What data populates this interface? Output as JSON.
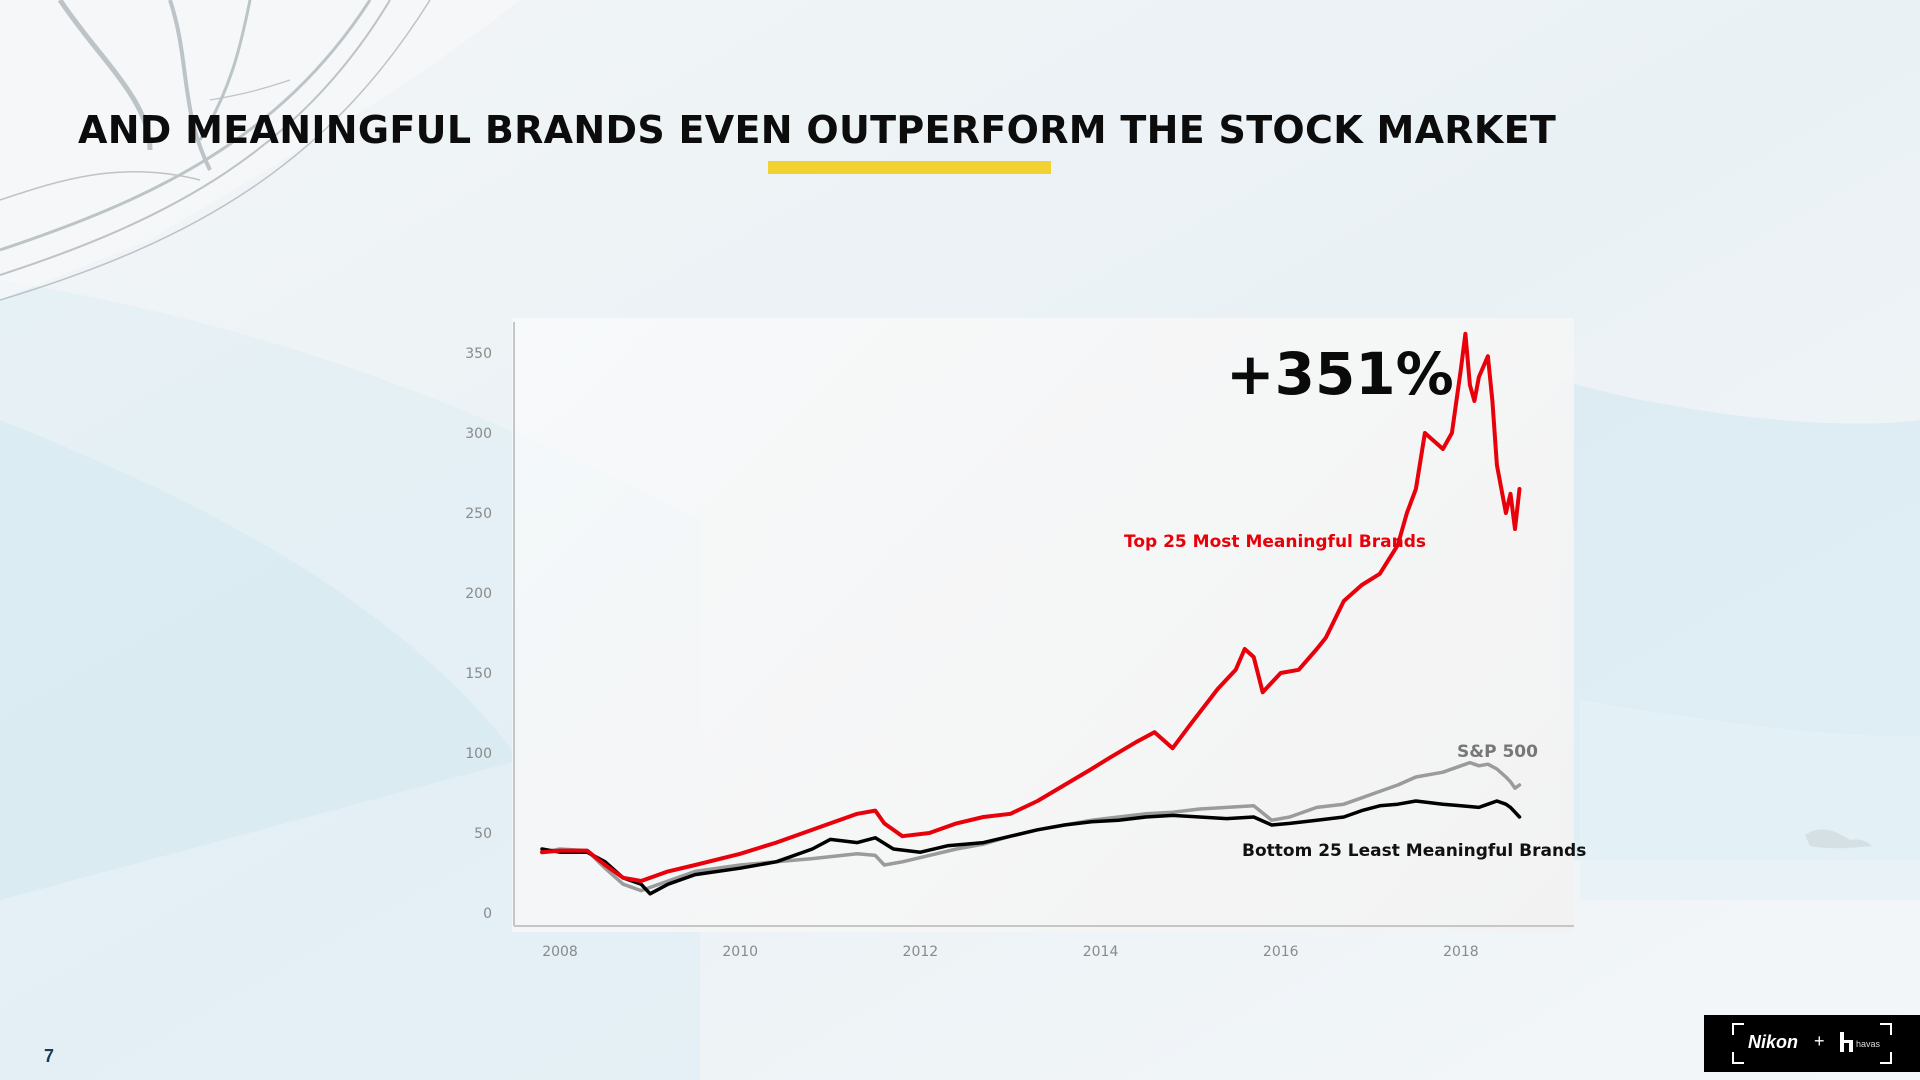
{
  "slide": {
    "title": "AND MEANINGFUL BRANDS EVEN OUTPERFORM THE STOCK MARKET",
    "page_number": "7",
    "colors": {
      "accent": "#f2d230",
      "title": "#0c0c0c",
      "page_number": "#1e3a5a"
    }
  },
  "branding": {
    "nikon": "Nikon",
    "plus": "+",
    "havas": "havas",
    "icon": "havas-logo-icon"
  },
  "chart_data": {
    "type": "line",
    "title": "",
    "xlabel": "",
    "ylabel": "",
    "xlim": [
      2007.6,
      2019.1
    ],
    "ylim": [
      0,
      350
    ],
    "x_ticks": [
      "2008",
      "2010",
      "2012",
      "2014",
      "2016",
      "2018"
    ],
    "y_ticks": [
      "350",
      "300",
      "250",
      "200",
      "150",
      "100",
      "50",
      "0"
    ],
    "grid": false,
    "annotation": "+351%",
    "series": [
      {
        "name": "Top 25 Most Meaningful Brands",
        "color": "#e8000a",
        "x": [
          2007.8,
          2008.0,
          2008.3,
          2008.5,
          2008.7,
          2008.9,
          2009.2,
          2009.5,
          2010.0,
          2010.4,
          2010.8,
          2011.3,
          2011.5,
          2011.6,
          2011.8,
          2012.1,
          2012.4,
          2012.7,
          2013.0,
          2013.3,
          2013.6,
          2013.9,
          2014.1,
          2014.4,
          2014.6,
          2014.8,
          2015.0,
          2015.3,
          2015.5,
          2015.6,
          2015.7,
          2015.8,
          2016.0,
          2016.2,
          2016.4,
          2016.5,
          2016.7,
          2016.9,
          2017.1,
          2017.3,
          2017.4,
          2017.5,
          2017.6,
          2017.8,
          2017.9,
          2018.0,
          2018.05,
          2018.1,
          2018.15,
          2018.2,
          2018.3,
          2018.35,
          2018.4,
          2018.5,
          2018.55,
          2018.6,
          2018.65
        ],
        "y": [
          38,
          39,
          39,
          30,
          22,
          20,
          26,
          30,
          37,
          44,
          52,
          62,
          64,
          56,
          48,
          50,
          56,
          60,
          62,
          70,
          80,
          90,
          97,
          107,
          113,
          103,
          118,
          140,
          152,
          165,
          160,
          138,
          150,
          152,
          165,
          172,
          195,
          205,
          212,
          230,
          250,
          265,
          300,
          290,
          300,
          340,
          362,
          330,
          320,
          335,
          348,
          320,
          280,
          250,
          262,
          240,
          265
        ]
      },
      {
        "name": "S&P 500",
        "color": "#9b9b9b",
        "x": [
          2007.8,
          2008.0,
          2008.3,
          2008.5,
          2008.7,
          2008.9,
          2009.2,
          2009.5,
          2010.0,
          2010.4,
          2010.8,
          2011.3,
          2011.5,
          2011.6,
          2011.8,
          2012.1,
          2012.4,
          2012.7,
          2013.0,
          2013.3,
          2013.6,
          2013.9,
          2014.2,
          2014.5,
          2014.8,
          2015.1,
          2015.4,
          2015.7,
          2015.9,
          2016.1,
          2016.4,
          2016.7,
          2016.9,
          2017.1,
          2017.3,
          2017.5,
          2017.8,
          2018.0,
          2018.1,
          2018.2,
          2018.3,
          2018.4,
          2018.5,
          2018.55,
          2018.6,
          2018.65
        ],
        "y": [
          38,
          40,
          39,
          28,
          18,
          14,
          20,
          26,
          30,
          32,
          34,
          37,
          36,
          30,
          32,
          36,
          40,
          43,
          48,
          52,
          55,
          58,
          60,
          62,
          63,
          65,
          66,
          67,
          58,
          60,
          66,
          68,
          72,
          76,
          80,
          85,
          88,
          92,
          94,
          92,
          93,
          90,
          85,
          82,
          78,
          80
        ]
      },
      {
        "name": "Bottom 25 Least Meaningful Brands",
        "color": "#000000",
        "x": [
          2007.8,
          2008.0,
          2008.3,
          2008.5,
          2008.7,
          2008.9,
          2009.0,
          2009.2,
          2009.5,
          2010.0,
          2010.4,
          2010.8,
          2011.0,
          2011.3,
          2011.5,
          2011.7,
          2012.0,
          2012.3,
          2012.7,
          2013.0,
          2013.3,
          2013.6,
          2013.9,
          2014.2,
          2014.5,
          2014.8,
          2015.1,
          2015.4,
          2015.7,
          2015.9,
          2016.1,
          2016.4,
          2016.7,
          2016.9,
          2017.1,
          2017.3,
          2017.5,
          2017.8,
          2018.0,
          2018.2,
          2018.3,
          2018.4,
          2018.5,
          2018.55,
          2018.6,
          2018.65
        ],
        "y": [
          40,
          38,
          38,
          32,
          22,
          18,
          12,
          18,
          24,
          28,
          32,
          40,
          46,
          44,
          47,
          40,
          38,
          42,
          44,
          48,
          52,
          55,
          57,
          58,
          60,
          61,
          60,
          59,
          60,
          55,
          56,
          58,
          60,
          64,
          67,
          68,
          70,
          68,
          67,
          66,
          68,
          70,
          68,
          66,
          63,
          60
        ]
      }
    ]
  }
}
